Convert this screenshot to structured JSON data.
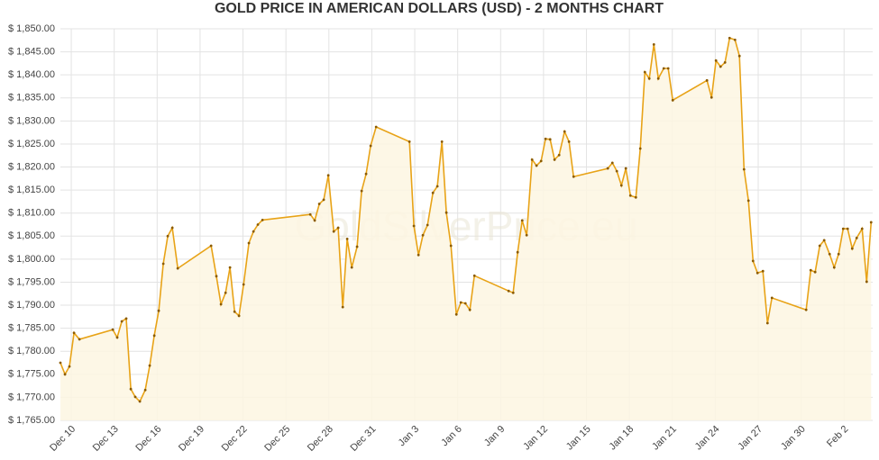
{
  "chart_data": {
    "type": "area",
    "title": "GOLD PRICE IN AMERICAN DOLLARS (USD) - 2 MONTHS CHART",
    "watermark": "GoldSilverPrice.eu",
    "color": "#e8a317",
    "fill": "#fdf6e2",
    "grid": true,
    "x": [
      -0.76,
      -0.44,
      -0.13,
      0.19,
      0.57,
      2.9,
      3.21,
      3.53,
      3.84,
      4.16,
      4.47,
      4.79,
      5.17,
      5.48,
      5.8,
      6.11,
      6.43,
      6.74,
      7.06,
      7.44,
      9.77,
      10.14,
      10.46,
      10.78,
      11.09,
      11.41,
      11.72,
      12.04,
      12.41,
      12.73,
      13.04,
      13.36,
      16.7,
      17.01,
      17.33,
      17.64,
      17.96,
      18.34,
      18.65,
      18.97,
      19.28,
      19.6,
      19.97,
      20.29,
      20.6,
      20.92,
      21.3,
      23.63,
      23.94,
      24.26,
      24.57,
      24.89,
      25.27,
      25.58,
      25.9,
      26.21,
      26.53,
      26.91,
      27.22,
      27.54,
      27.85,
      28.17,
      30.56,
      30.88,
      31.19,
      31.51,
      31.82,
      32.2,
      32.51,
      32.83,
      33.14,
      33.46,
      33.77,
      34.09,
      34.47,
      34.78,
      35.1,
      37.49,
      37.81,
      38.12,
      38.44,
      38.75,
      39.07,
      39.45,
      39.76,
      40.08,
      40.39,
      40.71,
      41.02,
      41.4,
      41.71,
      42.03,
      44.42,
      44.74,
      45.05,
      45.37,
      45.68,
      46.0,
      46.38,
      46.69,
      47.01,
      47.32,
      47.64,
      47.95,
      48.33,
      48.65,
      48.96,
      51.35,
      51.67,
      51.98,
      52.3,
      52.61,
      52.99,
      53.31,
      53.62,
      53.94,
      54.25,
      54.57,
      54.88,
      55.26,
      55.58,
      55.89
    ],
    "series": [
      {
        "name": "Gold",
        "values": [
          1777.5,
          1775.0,
          1776.7,
          1784.0,
          1782.6,
          1784.7,
          1783.0,
          1786.5,
          1787.1,
          1771.8,
          1770.1,
          1769.1,
          1771.6,
          1776.9,
          1783.4,
          1788.8,
          1799.0,
          1805.0,
          1806.8,
          1798.0,
          1802.9,
          1796.3,
          1790.2,
          1792.7,
          1798.2,
          1788.6,
          1787.7,
          1794.5,
          1803.5,
          1806.0,
          1807.5,
          1808.5,
          1809.7,
          1808.4,
          1812.0,
          1812.9,
          1818.2,
          1806.0,
          1806.8,
          1789.6,
          1804.4,
          1798.2,
          1802.7,
          1814.8,
          1818.5,
          1824.6,
          1828.7,
          1825.5,
          1807.2,
          1800.9,
          1805.2,
          1807.4,
          1814.4,
          1815.8,
          1825.5,
          1810.1,
          1802.9,
          1788.0,
          1790.6,
          1790.4,
          1789.0,
          1796.4,
          1793.1,
          1792.7,
          1801.5,
          1808.4,
          1805.2,
          1821.6,
          1820.3,
          1821.3,
          1826.1,
          1826.0,
          1821.6,
          1822.6,
          1827.7,
          1825.5,
          1817.9,
          1819.7,
          1820.9,
          1819.1,
          1816.0,
          1819.7,
          1813.8,
          1813.4,
          1824.0,
          1840.6,
          1839.2,
          1846.6,
          1839.2,
          1841.4,
          1841.4,
          1834.5,
          1838.8,
          1835.1,
          1843.1,
          1841.8,
          1842.7,
          1848.0,
          1847.6,
          1844.1,
          1819.5,
          1812.7,
          1799.6,
          1797.0,
          1797.4,
          1786.1,
          1791.6,
          1789.0,
          1797.6,
          1797.2,
          1802.9,
          1804.1,
          1801.1,
          1798.2,
          1801.1,
          1806.6,
          1806.6,
          1802.3,
          1804.6,
          1806.6,
          1795.1,
          1808.0
        ]
      }
    ],
    "xlim": [
      -0.76,
      56
    ],
    "xticks": [
      {
        "value": 0,
        "label": "Dec 10"
      },
      {
        "value": 3,
        "label": "Dec 13"
      },
      {
        "value": 6,
        "label": "Dec 16"
      },
      {
        "value": 9,
        "label": "Dec 19"
      },
      {
        "value": 12,
        "label": "Dec 22"
      },
      {
        "value": 15,
        "label": "Dec 25"
      },
      {
        "value": 18,
        "label": "Dec 28"
      },
      {
        "value": 21,
        "label": "Dec 31"
      },
      {
        "value": 24,
        "label": "Jan 3"
      },
      {
        "value": 27,
        "label": "Jan 6"
      },
      {
        "value": 30,
        "label": "Jan 9"
      },
      {
        "value": 33,
        "label": "Jan 12"
      },
      {
        "value": 36,
        "label": "Jan 15"
      },
      {
        "value": 39,
        "label": "Jan 18"
      },
      {
        "value": 42,
        "label": "Jan 21"
      },
      {
        "value": 45,
        "label": "Jan 24"
      },
      {
        "value": 48,
        "label": "Jan 27"
      },
      {
        "value": 51,
        "label": "Jan 30"
      },
      {
        "value": 54,
        "label": "Feb 2"
      }
    ],
    "ylim": [
      1765,
      1850
    ],
    "yticks": [
      {
        "value": 1765,
        "label": "$ 1,765.00"
      },
      {
        "value": 1770,
        "label": "$ 1,770.00"
      },
      {
        "value": 1775,
        "label": "$ 1,775.00"
      },
      {
        "value": 1780,
        "label": "$ 1,780.00"
      },
      {
        "value": 1785,
        "label": "$ 1,785.00"
      },
      {
        "value": 1790,
        "label": "$ 1,790.00"
      },
      {
        "value": 1795,
        "label": "$ 1,795.00"
      },
      {
        "value": 1800,
        "label": "$ 1,800.00"
      },
      {
        "value": 1805,
        "label": "$ 1,805.00"
      },
      {
        "value": 1810,
        "label": "$ 1,810.00"
      },
      {
        "value": 1815,
        "label": "$ 1,815.00"
      },
      {
        "value": 1820,
        "label": "$ 1,820.00"
      },
      {
        "value": 1825,
        "label": "$ 1,825.00"
      },
      {
        "value": 1830,
        "label": "$ 1,830.00"
      },
      {
        "value": 1835,
        "label": "$ 1,835.00"
      },
      {
        "value": 1840,
        "label": "$ 1,840.00"
      },
      {
        "value": 1845,
        "label": "$ 1,845.00"
      },
      {
        "value": 1850,
        "label": "$ 1,850.00"
      }
    ]
  }
}
